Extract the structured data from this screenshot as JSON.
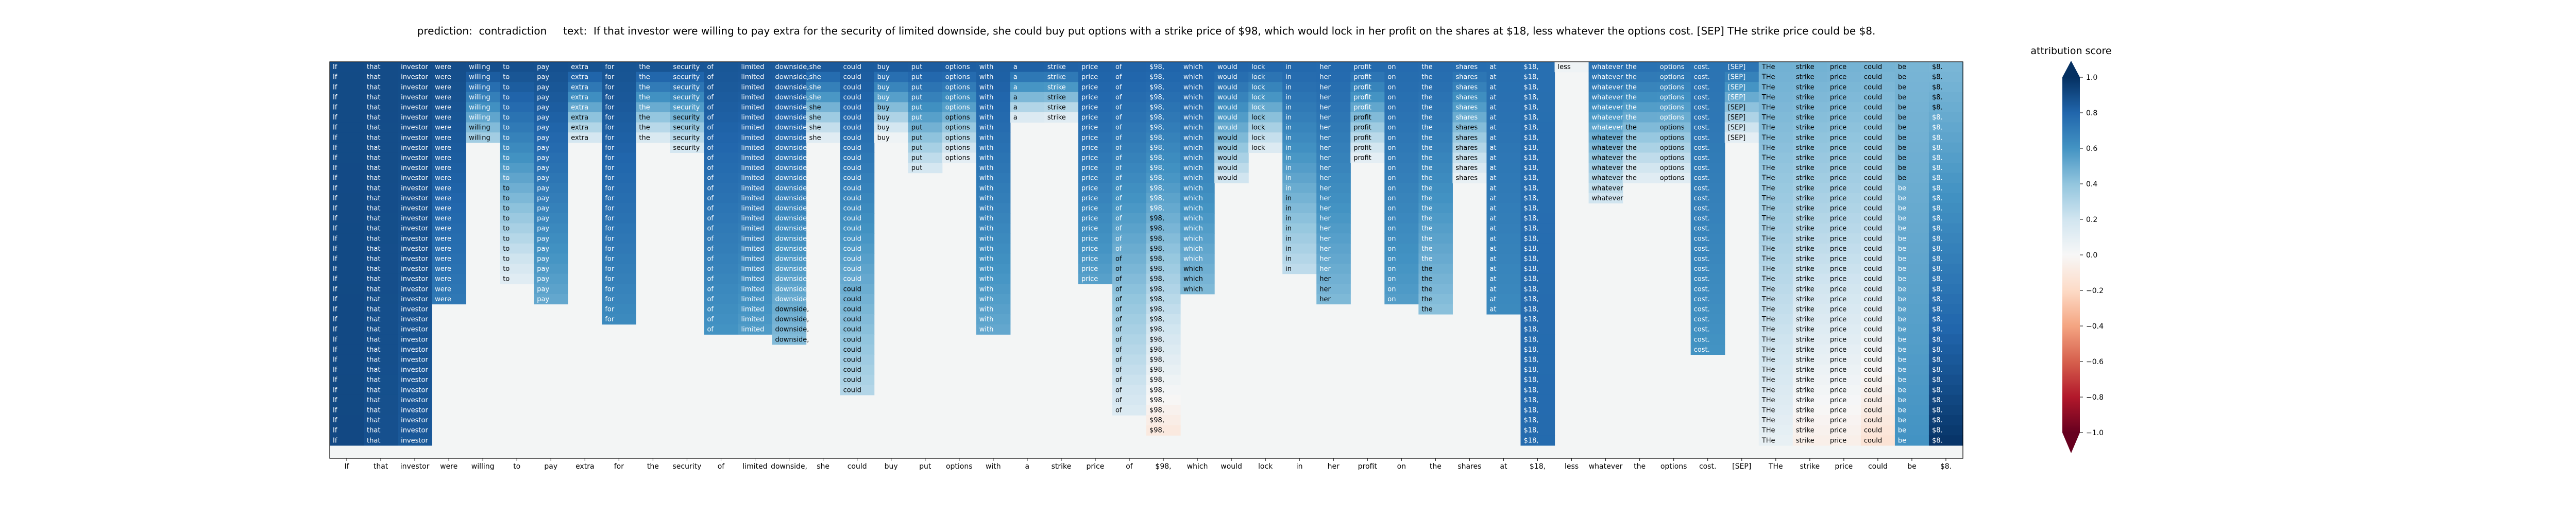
{
  "chart_data": {
    "type": "heatmap",
    "title_prefix": "prediction:",
    "prediction": "contradiction",
    "text_prefix": "text:",
    "text": "If that investor were willing to pay extra for the security of limited downside, she could buy put options with a strike price of $98, which would lock in her profit on the shares at $18, less whatever the options cost. [SEP] THe strike price could be $8.",
    "x_tokens": [
      "If",
      "that",
      "investor",
      "were",
      "willing",
      "to",
      "pay",
      "extra",
      "for",
      "the",
      "security",
      "of",
      "limited",
      "downside,",
      "she",
      "could",
      "buy",
      "put",
      "options",
      "with",
      "a",
      "strike",
      "price",
      "of",
      "$98,",
      "which",
      "would",
      "lock",
      "in",
      "her",
      "profit",
      "on",
      "the",
      "shares",
      "at",
      "$18,",
      "less",
      "whatever",
      "the",
      "options",
      "cost.",
      "[SEP]",
      "THe",
      "strike",
      "price",
      "could",
      "be",
      "$8."
    ],
    "row_count": 38,
    "note_rows": "Row r shows the tokens kept after r removal steps; blank cells are removed tokens.",
    "removal_step": [
      38,
      38,
      38,
      24,
      8,
      22,
      24,
      8,
      26,
      8,
      9,
      27,
      27,
      28,
      8,
      33,
      8,
      11,
      10,
      27,
      6,
      6,
      22,
      35,
      37,
      23,
      12,
      9,
      21,
      24,
      10,
      24,
      25,
      12,
      25,
      38,
      1,
      14,
      12,
      12,
      29,
      8,
      38,
      38,
      38,
      38,
      38,
      38
    ],
    "last_values": [
      0.91,
      0.88,
      0.85,
      0.72,
      0.35,
      0.12,
      0.52,
      0.18,
      0.64,
      0.16,
      0.18,
      0.6,
      0.57,
      0.44,
      0.12,
      0.3,
      0.05,
      0.18,
      0.1,
      0.52,
      0.14,
      0.12,
      0.55,
      0.15,
      -0.1,
      0.45,
      0.2,
      0.14,
      0.26,
      0.45,
      0.1,
      0.56,
      0.42,
      0.08,
      0.64,
      0.78,
      0.05,
      0.2,
      0.12,
      0.12,
      0.6,
      0.1,
      0.08,
      -0.06,
      -0.06,
      -0.14,
      0.6,
      0.98
    ],
    "value_range": [
      -1.0,
      1.0
    ],
    "colormap": "RdBu",
    "colorbar": {
      "label": "attribution score",
      "ticks": [
        1.0,
        0.8,
        0.6,
        0.4,
        0.2,
        0.0,
        -0.2,
        -0.4,
        -0.6,
        -0.8,
        -1.0
      ],
      "tick_labels": [
        "1.0",
        "0.8",
        "0.6",
        "0.4",
        "0.2",
        "0.0",
        "−0.2",
        "−0.4",
        "−0.6",
        "−0.8",
        "−1.0"
      ]
    },
    "grid": false,
    "legend": "colorbar-right"
  }
}
